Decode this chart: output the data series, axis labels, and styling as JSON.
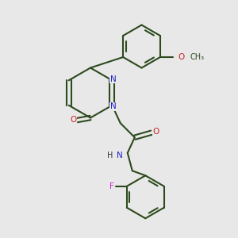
{
  "bg_color": "#e8e8e8",
  "bond_color": "#2d4a1e",
  "bond_lw": 1.5,
  "atom_colors": {
    "N": "#2222cc",
    "O": "#cc2222",
    "F": "#cc22cc",
    "C": "#2d4a1e",
    "H": "#333333"
  },
  "font_size": 7.5
}
